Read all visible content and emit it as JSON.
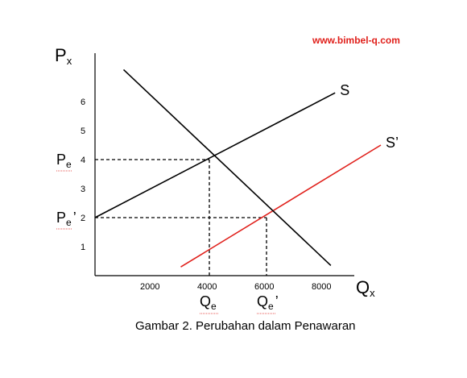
{
  "watermark": "www.bimbel-q.com",
  "caption": "Gambar 2. Perubahan dalam Penawaran",
  "chart_data": {
    "type": "line",
    "ylabel": "P",
    "ylabel_sub": "x",
    "xlabel": "Q",
    "xlabel_sub": "x",
    "xlim": [
      0,
      8800
    ],
    "ylim": [
      0,
      7.2
    ],
    "grid": false,
    "x_ticks": [
      "2000",
      "4000",
      "6000",
      "8000"
    ],
    "y_ticks": [
      "1",
      "2",
      "3",
      "4",
      "5",
      "6"
    ],
    "y_tick_values": [
      1,
      2,
      3,
      4,
      5,
      6
    ],
    "x_tick_values": [
      2000,
      4000,
      6000,
      8000
    ],
    "series": [
      {
        "name": "S",
        "color": "#000000",
        "points": [
          [
            0,
            2
          ],
          [
            8400,
            6.3
          ]
        ]
      },
      {
        "name": "S’",
        "color": "#e0201b",
        "points": [
          [
            3000,
            0.3
          ],
          [
            10000,
            4.5
          ]
        ]
      },
      {
        "color": "#000000",
        "points": [
          [
            1000,
            7.1
          ],
          [
            8250,
            0.35
          ]
        ]
      }
    ],
    "equilibrium": [
      {
        "price_label": "P",
        "price_sub": "e",
        "price_suffix": "",
        "qty_label": "Q",
        "qty_sub": "e",
        "qty_suffix": "",
        "x": 4000,
        "y": 4
      },
      {
        "price_label": "P",
        "price_sub": "e",
        "price_suffix": "’",
        "qty_label": "Q",
        "qty_sub": "e",
        "qty_suffix": "’",
        "x": 6000,
        "y": 2
      }
    ]
  }
}
